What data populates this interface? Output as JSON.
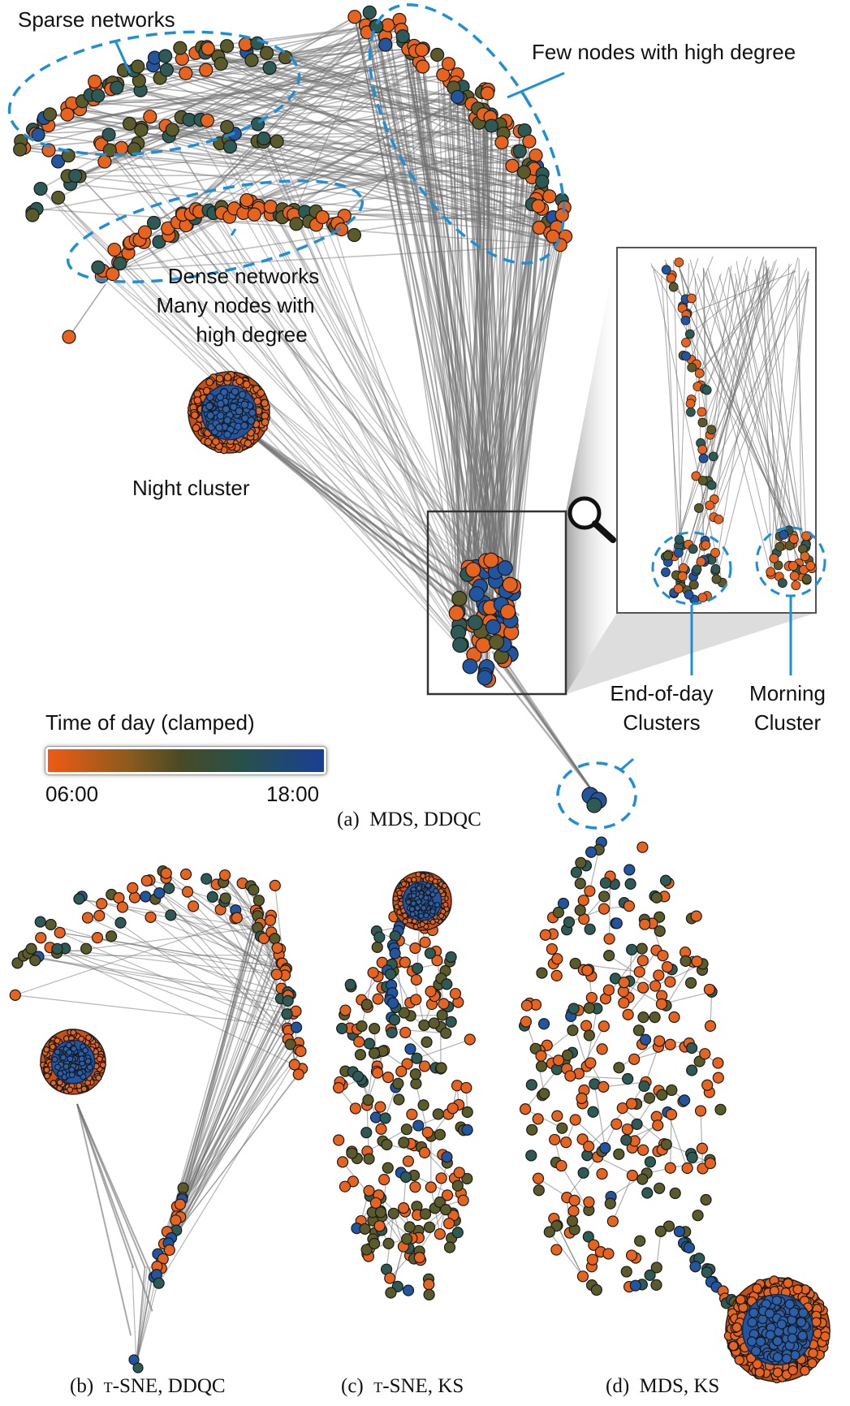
{
  "annotations": {
    "sparse_networks": "Sparse networks",
    "few_nodes_high_degree": "Few nodes with high degree",
    "dense_networks": [
      "Dense networks",
      "Many nodes with",
      "high degree"
    ],
    "night_cluster": "Night cluster",
    "end_of_day_clusters": [
      "End-of-day",
      "Clusters"
    ],
    "morning_cluster": [
      "Morning",
      "Cluster"
    ]
  },
  "colorbar": {
    "title": "Time of day (clamped)",
    "min_label": "06:00",
    "max_label": "18:00",
    "color_start": "#f05a14",
    "color_end": "#1a3f95"
  },
  "captions": {
    "a": {
      "prefix": "(a)",
      "text": "MDS, DDQC"
    },
    "b": {
      "prefix": "(b)",
      "text": "t-SNE, DDQC"
    },
    "c": {
      "prefix": "(c)",
      "text": "t-SNE, KS"
    },
    "d": {
      "prefix": "(d)",
      "text": "MDS, KS"
    }
  },
  "colors": {
    "orange": "#e8641e",
    "olive": "#5a5a2a",
    "teal": "#2e5a55",
    "blue": "#2255a0",
    "edge": "#707070",
    "highlight": "#1e8fd6"
  },
  "icons": {
    "magnifier": "magnifier-icon"
  }
}
